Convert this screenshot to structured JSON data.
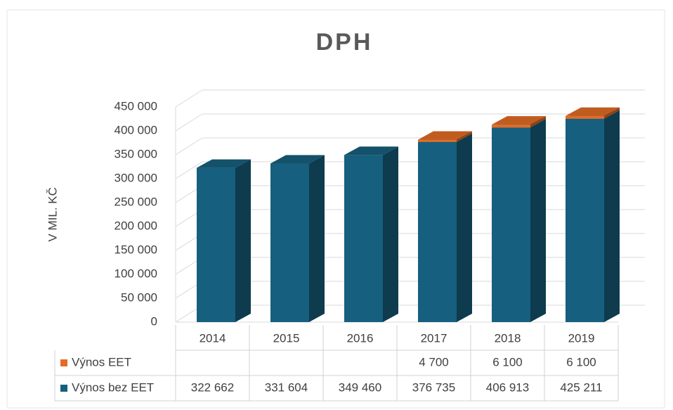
{
  "chart_data": {
    "type": "bar3d_stacked",
    "title": "DPH",
    "y_label": "V MIL. KČ",
    "categories": [
      "2014",
      "2015",
      "2016",
      "2017",
      "2018",
      "2019"
    ],
    "series": [
      {
        "name": "Výnos EET",
        "color": "#e36c26",
        "values": [
          null,
          null,
          null,
          4700,
          6100,
          6100
        ],
        "value_labels": [
          null,
          null,
          null,
          "4 700",
          "6 100",
          "6 100"
        ]
      },
      {
        "name": "Výnos bez EET",
        "color": "#175f7e",
        "values": [
          322662,
          331604,
          349460,
          376735,
          406913,
          425211
        ],
        "value_labels": [
          "322 662",
          "331 604",
          "349 460",
          "376 735",
          "406 913",
          "425 211"
        ]
      }
    ],
    "ylim": [
      0,
      450000
    ],
    "yticks": [
      0,
      {
        "value": 50000,
        "label": "50 000"
      },
      {
        "value": 100000,
        "label": "100 000"
      },
      {
        "value": 150000,
        "label": "150 000"
      },
      {
        "value": 200000,
        "label": "200 000"
      },
      {
        "value": 250000,
        "label": "250 000"
      },
      {
        "value": 300000,
        "label": "300 000"
      },
      {
        "value": 350000,
        "label": "350 000"
      },
      {
        "value": 400000,
        "label": "400 000"
      },
      {
        "value": 450000,
        "label": "450 000"
      }
    ],
    "grid": true,
    "data_table": true
  }
}
